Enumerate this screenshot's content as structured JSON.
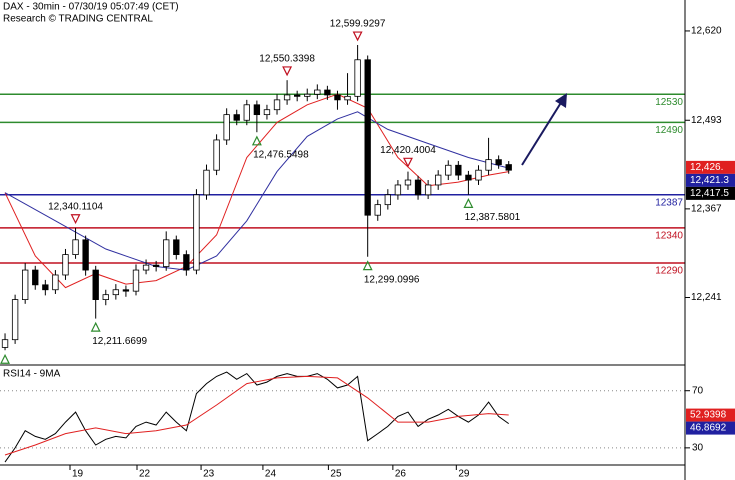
{
  "chart_data": {
    "type": "candlestick",
    "title": "DAX - 30min - 07/30/19 05:07:49 (CET)",
    "subtitle": "Research © TRADING CENTRAL",
    "xlim": [
      -0.5,
      67.5
    ],
    "xticks": [
      {
        "value": 6.45,
        "label": "19"
      },
      {
        "value": 13.1,
        "label": "22"
      },
      {
        "value": 19.46,
        "label": "23"
      },
      {
        "value": 25.6,
        "label": "24"
      },
      {
        "value": 32.1,
        "label": "25"
      },
      {
        "value": 38.5,
        "label": "26"
      },
      {
        "value": 44.8,
        "label": "29"
      }
    ],
    "ylim": [
      12145,
      12664
    ],
    "yticks": [
      {
        "value": 12620,
        "label": "12,620"
      },
      {
        "value": 12493,
        "label": "12,493"
      },
      {
        "value": 12367,
        "label": "12,367"
      },
      {
        "value": 12241,
        "label": "12,241"
      }
    ],
    "candles": [
      [
        12170,
        12190,
        12166,
        12181
      ],
      [
        12181,
        12245,
        12175,
        12238
      ],
      [
        12238,
        12290,
        12232,
        12280
      ],
      [
        12280,
        12286,
        12252,
        12259
      ],
      [
        12259,
        12266,
        12244,
        12252
      ],
      [
        12252,
        12280,
        12246,
        12273
      ],
      [
        12273,
        12310,
        12266,
        12302
      ],
      [
        12302,
        12340,
        12296,
        12323
      ],
      [
        12323,
        12329,
        12272,
        12280
      ],
      [
        12280,
        12286,
        12211,
        12238
      ],
      [
        12238,
        12252,
        12230,
        12245
      ],
      [
        12245,
        12260,
        12238,
        12252
      ],
      [
        12252,
        12258,
        12242,
        12250
      ],
      [
        12250,
        12288,
        12244,
        12280
      ],
      [
        12280,
        12295,
        12274,
        12287
      ],
      [
        12287,
        12293,
        12278,
        12285
      ],
      [
        12285,
        12335,
        12279,
        12323
      ],
      [
        12323,
        12329,
        12295,
        12302
      ],
      [
        12302,
        12308,
        12272,
        12280
      ],
      [
        12280,
        12395,
        12274,
        12387
      ],
      [
        12387,
        12430,
        12380,
        12422
      ],
      [
        12422,
        12473,
        12415,
        12465
      ],
      [
        12465,
        12510,
        12458,
        12501
      ],
      [
        12501,
        12508,
        12486,
        12493
      ],
      [
        12493,
        12522,
        12486,
        12515
      ],
      [
        12515,
        12521,
        12476,
        12501
      ],
      [
        12501,
        12515,
        12494,
        12508
      ],
      [
        12508,
        12530,
        12501,
        12522
      ],
      [
        12522,
        12550,
        12515,
        12529
      ],
      [
        12529,
        12535,
        12520,
        12527
      ],
      [
        12527,
        12538,
        12520,
        12530
      ],
      [
        12530,
        12544,
        12523,
        12536
      ],
      [
        12536,
        12542,
        12522,
        12529
      ],
      [
        12529,
        12535,
        12508,
        12522
      ],
      [
        12522,
        12560,
        12515,
        12527
      ],
      [
        12527,
        12600,
        12520,
        12579
      ],
      [
        12579,
        12585,
        12299,
        12358
      ],
      [
        12358,
        12380,
        12350,
        12373
      ],
      [
        12373,
        12395,
        12366,
        12387
      ],
      [
        12387,
        12408,
        12380,
        12401
      ],
      [
        12401,
        12420,
        12394,
        12408
      ],
      [
        12408,
        12414,
        12380,
        12387
      ],
      [
        12387,
        12408,
        12381,
        12401
      ],
      [
        12401,
        12422,
        12394,
        12415
      ],
      [
        12415,
        12436,
        12408,
        12429
      ],
      [
        12429,
        12435,
        12408,
        12415
      ],
      [
        12415,
        12421,
        12387,
        12408
      ],
      [
        12408,
        12429,
        12401,
        12422
      ],
      [
        12422,
        12468,
        12415,
        12437
      ],
      [
        12437,
        12443,
        12424,
        12430
      ],
      [
        12430,
        12435,
        12417,
        12422
      ]
    ],
    "series": [
      {
        "color": "#e02020",
        "x": [
          0,
          3,
          6,
          9,
          12,
          15,
          18,
          21,
          24,
          27,
          30,
          33,
          36,
          39,
          42,
          45,
          48,
          50
        ],
        "values": [
          12390,
          12300,
          12255,
          12275,
          12260,
          12265,
          12285,
          12330,
          12440,
          12490,
          12515,
          12530,
          12510,
          12440,
          12400,
          12405,
          12415,
          12420
        ]
      },
      {
        "color": "#3030a0",
        "x": [
          0,
          5,
          10,
          15,
          18,
          21,
          24,
          27,
          30,
          33,
          35,
          38,
          42,
          46,
          50
        ],
        "values": [
          12390,
          12350,
          12310,
          12285,
          12280,
          12300,
          12350,
          12420,
          12470,
          12495,
          12505,
          12480,
          12460,
          12440,
          12425
        ]
      }
    ],
    "levels": [
      {
        "value": 12530,
        "color": "#2e8b2e"
      },
      {
        "value": 12490,
        "color": "#2e8b2e"
      },
      {
        "value": 12387,
        "color": "#2020a0"
      },
      {
        "value": 12340,
        "color": "#c01020"
      },
      {
        "value": 12290,
        "color": "#c01020"
      }
    ],
    "annotations": [
      {
        "x": 35,
        "value": 12599.9297,
        "label": "12,599.9297",
        "kind": "high"
      },
      {
        "x": 28,
        "value": 12550.3398,
        "label": "12,550.3398",
        "kind": "high"
      },
      {
        "x": 25,
        "value": 12476.5498,
        "label": "12,476.5498",
        "kind": "low"
      },
      {
        "x": 40,
        "value": 12420.4004,
        "label": "12,420.4004",
        "kind": "high"
      },
      {
        "x": 46,
        "value": 12387.5801,
        "label": "12,387.5801",
        "kind": "low"
      },
      {
        "x": 7,
        "value": 12340.1104,
        "label": "12,340.1104",
        "kind": "high"
      },
      {
        "x": 36,
        "value": 12299.0996,
        "label": "12,299.0996",
        "kind": "low"
      },
      {
        "x": 9,
        "value": 12211.6699,
        "label": "12,211.6699",
        "kind": "low"
      }
    ],
    "start_low": {
      "x": 0,
      "value": 12166
    },
    "last_values": [
      {
        "value": 12426,
        "label": "12,426.",
        "color": "#e02020"
      },
      {
        "value": 12421.3,
        "label": "12,421.3",
        "color": "#2020a0"
      },
      {
        "value": 12417.5,
        "label": "12,417.5",
        "color": "#000000"
      }
    ],
    "rsi": {
      "title": "RSI14 - 9MA",
      "ylim": [
        18,
        88
      ],
      "yticks": [
        70,
        30
      ],
      "values": [
        20,
        30,
        42,
        38,
        36,
        40,
        48,
        55,
        42,
        32,
        36,
        38,
        37,
        45,
        48,
        46,
        55,
        48,
        42,
        68,
        75,
        80,
        83,
        78,
        82,
        74,
        76,
        80,
        82,
        80,
        80,
        82,
        78,
        72,
        74,
        80,
        35,
        40,
        45,
        52,
        55,
        45,
        50,
        53,
        57,
        52,
        48,
        53,
        62,
        52,
        47
      ],
      "color": "#000000",
      "ma": {
        "color": "#e02020",
        "x": [
          0,
          3,
          6,
          9,
          12,
          15,
          18,
          21,
          24,
          27,
          30,
          33,
          36,
          39,
          42,
          45,
          48,
          50
        ],
        "values": [
          25,
          32,
          40,
          44,
          40,
          42,
          46,
          60,
          75,
          79,
          80,
          79,
          65,
          48,
          48,
          52,
          54,
          53
        ]
      },
      "last_values": [
        {
          "value": 52.9398,
          "label": "52.9398",
          "color": "#e02020"
        },
        {
          "value": 46.8692,
          "label": "46.8692",
          "color": "#2020a0"
        }
      ]
    }
  }
}
